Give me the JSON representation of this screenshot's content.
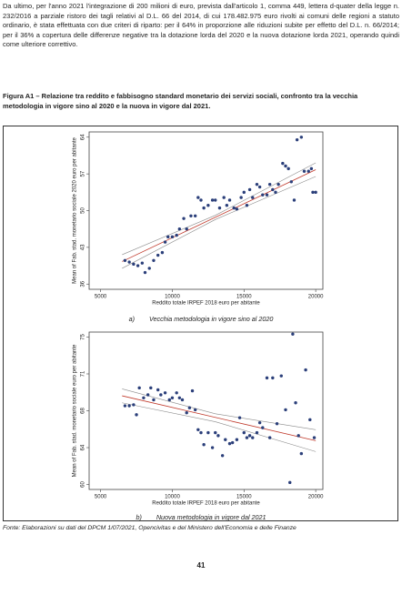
{
  "body_text": "Da ultimo, per l'anno 2021 l'integrazione di 200 milioni di euro, prevista dall'articolo 1, comma 449, lettera d-quater della legge n. 232/2016 a parziale ristoro dei tagli relativi al D.L.  66 del 2014, di cui 178.482.975 euro rivolti ai comuni delle regioni a statuto ordinario, è stata effettuata con due criteri di riparto: per il 64% in proporzione alle riduzioni subite per effetto del D.L. n. 66/2014; per il 36% a copertura delle differenze negative tra la dotazione lorda del 2020 e la nuova dotazione lorda 2021, operando quindi come ulteriore correttivo.",
  "figure": {
    "title": "Figura A1 – Relazione tra reddito e fabbisogno standard monetario dei servizi sociali, confronto tra la vecchia metodologia in vigore sino al 2020 e la nuova in vigore dal 2021.",
    "captions": [
      {
        "label": "a)",
        "text": "Vecchia metodologia in vigore sino al 2020"
      },
      {
        "label": "b)",
        "text": "Nuova metodologia in vigore dal 2021"
      }
    ],
    "source": "Fonte: Elaborazioni su dati del DPCM 1/07/2021, Opencivitas e del Ministero dell'Economia e delle Finanze"
  },
  "page_number": "41",
  "chart_data": [
    {
      "type": "scatter",
      "x_label": "Reddito totale IRPEF 2018 euro per abitante",
      "y_label": "Mean of Fab. stad. monetario sociale 2020 euro per abitante",
      "x": [
        6700,
        7000,
        7300,
        7600,
        7900,
        8100,
        8400,
        8700,
        9000,
        9300,
        9500,
        9700,
        10000,
        10300,
        10500,
        10800,
        11000,
        11300,
        11600,
        11800,
        12000,
        12200,
        12500,
        12800,
        13000,
        13300,
        13600,
        13800,
        14000,
        14300,
        14500,
        14800,
        15000,
        15200,
        15400,
        15600,
        15900,
        16100,
        16300,
        16600,
        16800,
        17000,
        17200,
        17400,
        17700,
        17900,
        18100,
        18300,
        18500,
        18700,
        19000,
        19200,
        19500,
        19700,
        19800,
        20000
      ],
      "values": [
        40.5,
        40.2,
        39.8,
        39.5,
        40,
        38.2,
        39,
        40.5,
        41.5,
        42,
        44,
        45,
        45,
        45.3,
        46.5,
        48.5,
        46.5,
        49,
        49,
        52.5,
        52,
        50.5,
        51,
        52,
        52,
        50.5,
        52.5,
        51,
        52,
        50.5,
        50.3,
        52.5,
        53.5,
        51,
        54,
        52.5,
        55,
        54.5,
        53,
        53,
        55,
        54,
        53.5,
        55,
        59,
        58.5,
        58,
        55.5,
        52,
        63.5,
        64,
        57.5,
        57.5,
        58,
        53.5,
        53.5
      ],
      "color": "#2b3f7a",
      "xlim": [
        4200,
        20500
      ],
      "ylim": [
        35,
        65
      ],
      "xticks": [
        5000,
        10000,
        15000,
        20000
      ],
      "yticks": [
        36,
        43,
        50,
        57,
        64
      ],
      "fit": {
        "x": [
          6500,
          20000
        ],
        "values": [
          40.3,
          57.8
        ],
        "color": "#c0392b"
      },
      "band": {
        "x": [
          6500,
          13000,
          20000
        ],
        "lower": [
          39.0,
          48.3,
          56.5
        ],
        "upper": [
          41.6,
          49.1,
          59.1
        ],
        "color": "#8a8a8a"
      }
    },
    {
      "type": "scatter",
      "x_label": "Reddito totale IRPEF 2018 euro per abitante",
      "y_label": "Mean of Fab. stad. monetario sociale euro per abitante",
      "x": [
        6700,
        7000,
        7300,
        7500,
        7700,
        8000,
        8300,
        8500,
        8700,
        9000,
        9200,
        9500,
        9800,
        10000,
        10300,
        10500,
        10700,
        11000,
        11200,
        11400,
        11600,
        11800,
        12000,
        12200,
        12500,
        12800,
        13000,
        13200,
        13500,
        13700,
        14000,
        14200,
        14500,
        14700,
        15000,
        15200,
        15400,
        15600,
        15900,
        16100,
        16300,
        16600,
        16800,
        17000,
        17300,
        17600,
        17900,
        18200,
        18400,
        18600,
        18800,
        19000,
        19300,
        19600,
        19900
      ],
      "values": [
        68.2,
        68.2,
        68.3,
        67.3,
        70,
        69,
        69.3,
        70,
        68.8,
        69.8,
        69.3,
        69.5,
        68.8,
        69,
        69.5,
        69,
        68.8,
        67.5,
        68,
        69.7,
        67.8,
        65.8,
        65.5,
        64.3,
        65.5,
        64,
        65.5,
        65.2,
        63.2,
        64.8,
        64.4,
        64.5,
        64.8,
        67,
        65.5,
        65,
        65.2,
        65,
        65.5,
        66.5,
        66,
        71,
        65,
        71,
        66.4,
        71.2,
        67.8,
        60.5,
        75.4,
        68.5,
        65.2,
        63.4,
        71.8,
        66.8,
        65
      ],
      "color": "#2b3f7a",
      "xlim": [
        4200,
        20500
      ],
      "ylim": [
        59.8,
        75.6
      ],
      "xticks": [
        5000,
        10000,
        15000,
        20000
      ],
      "yticks": [
        {
          "value": 60.3,
          "label": "60"
        },
        {
          "value": 64.0,
          "label": "64"
        },
        {
          "value": 67.7,
          "label": "68"
        },
        {
          "value": 71.4,
          "label": "71"
        },
        {
          "value": 75.1,
          "label": "75"
        }
      ],
      "fit": {
        "x": [
          6500,
          20000
        ],
        "values": [
          69.2,
          64.7
        ],
        "color": "#c0392b"
      },
      "band": {
        "x": [
          6500,
          13000,
          20000
        ],
        "lower": [
          68.5,
          66.6,
          63.6
        ],
        "upper": [
          69.9,
          67.4,
          65.8
        ],
        "color": "#8a8a8a"
      }
    }
  ]
}
